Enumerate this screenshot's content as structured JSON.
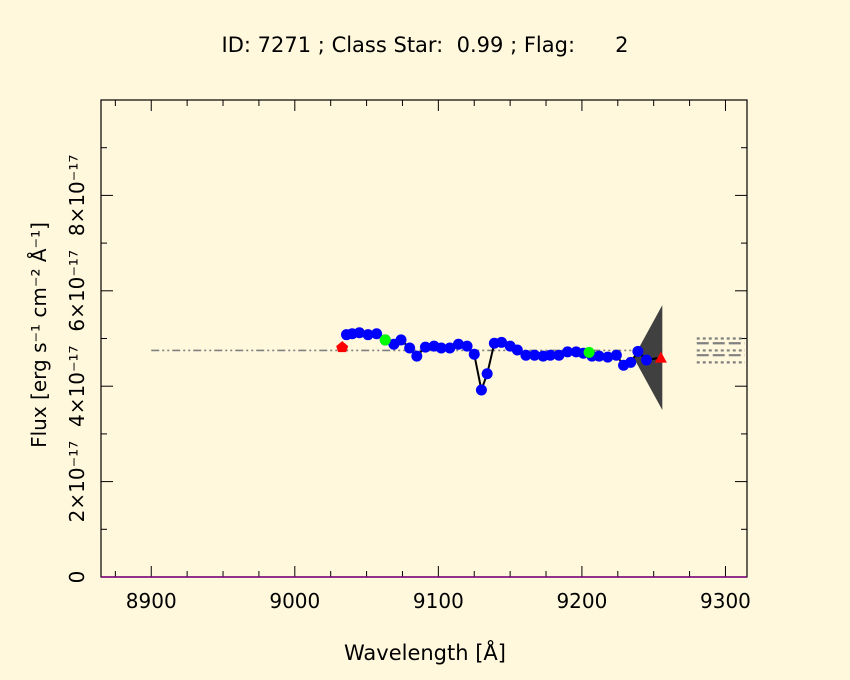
{
  "title": {
    "id_label": "ID:",
    "id_value": "7271",
    "class_star_label": "Class Star:",
    "class_star_value": "0.99",
    "flag_label": "Flag:",
    "flag_value": "2"
  },
  "colors": {
    "background": "#fff8dc",
    "spectrum": "#0000ff",
    "line": "#000000",
    "red_marker": "#ff0000",
    "green_marker": "#00ff00",
    "continuum": "#808080",
    "error_band": "#404040",
    "baseline": "#800080"
  },
  "chart_data": {
    "type": "line",
    "title": "ID: 7271 ; Class Star:  0.99 ; Flag:      2",
    "xlabel": "Wavelength [Å]",
    "ylabel": "Flux [erg s⁻¹ cm⁻² Å⁻¹]",
    "xlim": [
      8865,
      9315
    ],
    "ylim": [
      0,
      1e-16
    ],
    "x_ticks": [
      8900,
      9000,
      9100,
      9200,
      9300
    ],
    "y_ticks": [
      {
        "value": 0,
        "label": "0"
      },
      {
        "value": 2e-17,
        "label": "2×10⁻¹⁷"
      },
      {
        "value": 4e-17,
        "label": "4×10⁻¹⁷"
      },
      {
        "value": 6e-17,
        "label": "6×10⁻¹⁷"
      },
      {
        "value": 8e-17,
        "label": "8×10⁻¹⁷"
      }
    ],
    "series": [
      {
        "name": "spectrum",
        "x": [
          9036,
          9040,
          9045,
          9051,
          9057,
          9063,
          9069,
          9074,
          9080,
          9085,
          9091,
          9097,
          9102,
          9108,
          9114,
          9120,
          9125,
          9130,
          9134,
          9139,
          9144,
          9150,
          9155,
          9161,
          9167,
          9173,
          9178,
          9184,
          9190,
          9196,
          9201,
          9207,
          9212,
          9218,
          9224,
          9229,
          9234,
          9239,
          9245
        ],
        "y": [
          5.08e-17,
          5.1e-17,
          5.12e-17,
          5.08e-17,
          5.1e-17,
          4.97e-17,
          4.88e-17,
          4.97e-17,
          4.8e-17,
          4.63e-17,
          4.82e-17,
          4.84e-17,
          4.8e-17,
          4.8e-17,
          4.88e-17,
          4.84e-17,
          4.67e-17,
          3.92e-17,
          4.26e-17,
          4.9e-17,
          4.92e-17,
          4.84e-17,
          4.76e-17,
          4.65e-17,
          4.65e-17,
          4.63e-17,
          4.65e-17,
          4.65e-17,
          4.72e-17,
          4.72e-17,
          4.69e-17,
          4.63e-17,
          4.63e-17,
          4.61e-17,
          4.65e-17,
          4.44e-17,
          4.5e-17,
          4.73e-17,
          4.55e-17
        ]
      },
      {
        "name": "continuum",
        "x": [
          8900,
          9256
        ],
        "y": [
          4.75e-17,
          4.75e-17
        ]
      }
    ],
    "red_markers": [
      {
        "x": 9033,
        "y": 4.82e-17
      },
      {
        "x": 9255,
        "y": 4.6e-17
      }
    ],
    "green_markers": [
      {
        "x": 9063,
        "y": 4.97e-17
      },
      {
        "x": 9205,
        "y": 4.71e-17
      }
    ],
    "error_band": {
      "x0": 9236,
      "x1": 9256,
      "y_center": 4.6e-17,
      "half_width": 1.1e-17
    },
    "right_ticks": [
      5e-17,
      4.9e-17,
      4.75e-17,
      4.65e-17,
      4.5e-17
    ]
  }
}
